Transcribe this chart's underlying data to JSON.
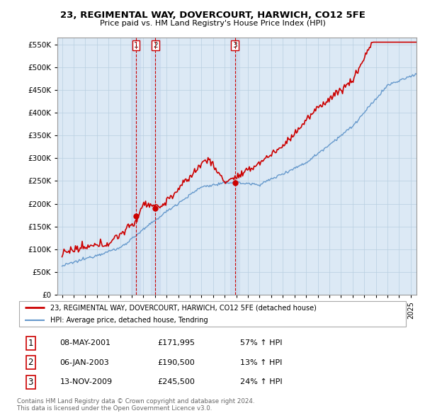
{
  "title": "23, REGIMENTAL WAY, DOVERCOURT, HARWICH, CO12 5FE",
  "subtitle": "Price paid vs. HM Land Registry's House Price Index (HPI)",
  "ytick_values": [
    0,
    50000,
    100000,
    150000,
    200000,
    250000,
    300000,
    350000,
    400000,
    450000,
    500000,
    550000
  ],
  "sale_year_nums": [
    2001.36,
    2003.02,
    2009.87
  ],
  "sale_prices": [
    171995,
    190500,
    245500
  ],
  "sale_labels": [
    "1",
    "2",
    "3"
  ],
  "sale_pct": [
    "57% ↑ HPI",
    "13% ↑ HPI",
    "24% ↑ HPI"
  ],
  "sale_date_labels": [
    "08-MAY-2001",
    "06-JAN-2003",
    "13-NOV-2009"
  ],
  "sale_price_labels": [
    "£171,995",
    "£190,500",
    "£245,500"
  ],
  "legend_line1": "23, REGIMENTAL WAY, DOVERCOURT, HARWICH, CO12 5FE (detached house)",
  "legend_line2": "HPI: Average price, detached house, Tendring",
  "footer_line1": "Contains HM Land Registry data © Crown copyright and database right 2024.",
  "footer_line2": "This data is licensed under the Open Government Licence v3.0.",
  "red_color": "#cc0000",
  "blue_color": "#6699cc",
  "chart_bg_color": "#dce9f5",
  "background_color": "#ffffff",
  "grid_color": "#b8cfe0",
  "vline_fill_color": "#c8d8ee"
}
